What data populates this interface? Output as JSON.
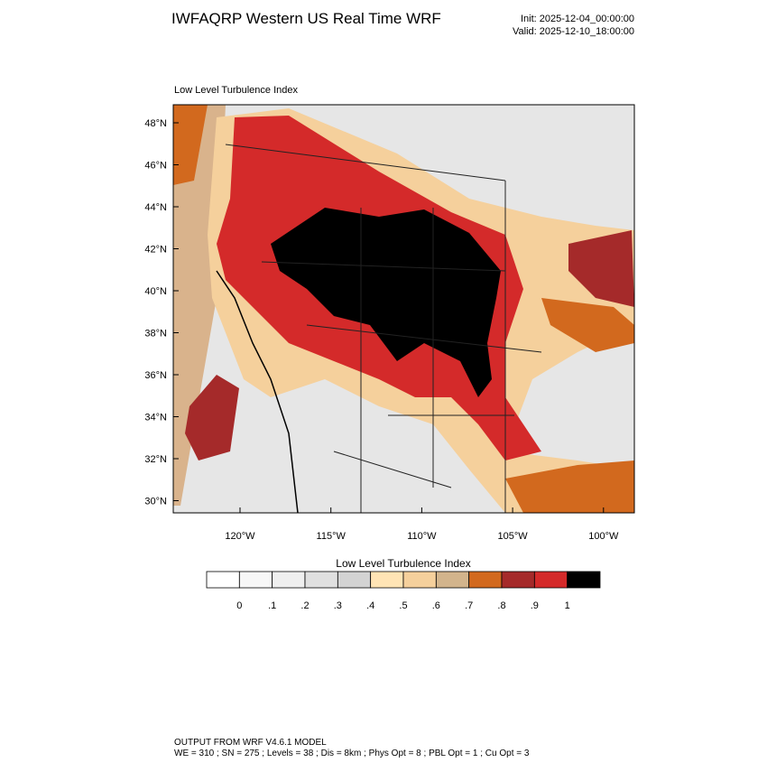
{
  "header": {
    "title": "IWFAQRP Western US Real Time WRF",
    "init": "Init: 2025-12-04_00:00:00",
    "valid": "Valid: 2025-12-10_18:00:00"
  },
  "map": {
    "label": "Low Level Turbulence Index",
    "lat_labels": [
      "48°N",
      "46°N",
      "44°N",
      "42°N",
      "40°N",
      "38°N",
      "36°N",
      "34°N",
      "32°N",
      "30°N"
    ],
    "lon_labels": [
      "120°W",
      "115°W",
      "110°W",
      "105°W",
      "100°W"
    ]
  },
  "colorbar": {
    "title": "Low Level Turbulence Index",
    "colors": [
      "#ffffff",
      "#f7f7f7",
      "#efefef",
      "#e0e0e0",
      "#d3d3d3",
      "#ffe4b5",
      "#f5d09c",
      "#d2b48c",
      "#d2691e",
      "#a52a2a",
      "#d42a2a",
      "#000000"
    ],
    "labels": [
      "0",
      ".1",
      ".2",
      ".3",
      ".4",
      ".5",
      ".6",
      ".7",
      ".8",
      ".9",
      "1"
    ]
  },
  "footer": {
    "line1": "OUTPUT FROM WRF V4.6.1 MODEL",
    "line2": "WE = 310 ; SN = 275 ; Levels = 38 ; Dis = 8km ; Phys Opt = 8 ; PBL Opt = 1 ; Cu Opt = 3"
  }
}
